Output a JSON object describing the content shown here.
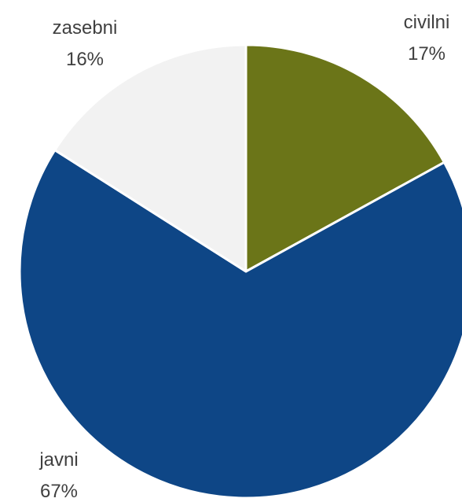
{
  "chart_data": {
    "type": "pie",
    "title": "",
    "categories": [
      "civilni",
      "javni",
      "zasebni"
    ],
    "values": [
      17,
      67,
      16
    ],
    "value_labels": [
      "17%",
      "67%",
      "16%"
    ],
    "colors": [
      "#6b7518",
      "#0e4686",
      "#f2f2f2"
    ],
    "start_angle_deg": 0,
    "direction": "clockwise",
    "legend": "none"
  }
}
